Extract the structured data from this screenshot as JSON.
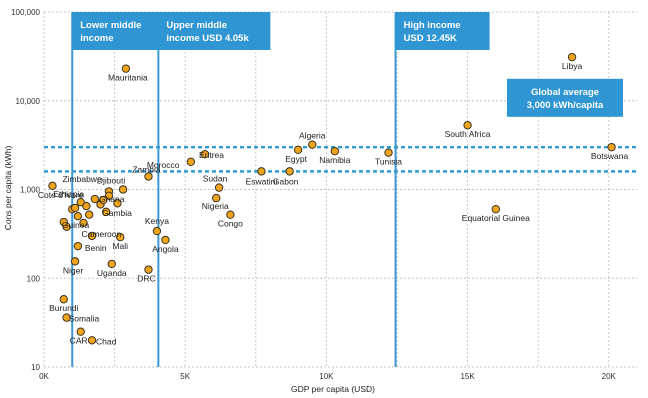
{
  "chart_data": {
    "type": "scatter",
    "title": "",
    "xlabel": "GDP per capita (USD)",
    "ylabel": "Cons per capita (kWh)",
    "xlim": [
      0,
      21000
    ],
    "ylim": [
      10,
      100000
    ],
    "y_scale": "log",
    "grid": true,
    "x_ticks": [
      {
        "value": 0,
        "label": "0K"
      },
      {
        "value": 5000,
        "label": "5K"
      },
      {
        "value": 10000,
        "label": "10K"
      },
      {
        "value": 15000,
        "label": "15K"
      },
      {
        "value": 20000,
        "label": "20K"
      }
    ],
    "y_ticks": [
      {
        "value": 10,
        "label": "10"
      },
      {
        "value": 100,
        "label": "100"
      },
      {
        "value": 1000,
        "label": "1,000"
      },
      {
        "value": 10000,
        "label": "10,000"
      },
      {
        "value": 100000,
        "label": "100,000"
      }
    ],
    "income_thresholds": [
      {
        "x": 1000,
        "text": [
          "Lower middle",
          "income"
        ]
      },
      {
        "x": 4050,
        "text": [
          "Upper middle",
          "income USD 4.05k"
        ]
      },
      {
        "x": 12450,
        "text": [
          "High income",
          "USD 12.45K"
        ]
      }
    ],
    "global_average": {
      "y_band": [
        1600,
        3000
      ],
      "text": [
        "Global average",
        "3,000 kWh/capita"
      ]
    },
    "points": [
      {
        "name": "Libya",
        "x": 18700,
        "y": 31000
      },
      {
        "name": "Mauritania",
        "x": 2900,
        "y": 23000
      },
      {
        "name": "South Africa",
        "x": 15000,
        "y": 5300
      },
      {
        "name": "Algeria",
        "x": 9500,
        "y": 3200
      },
      {
        "name": "Botswana",
        "x": 20100,
        "y": 3000
      },
      {
        "name": "Egypt",
        "x": 9000,
        "y": 2800
      },
      {
        "name": "Namibia",
        "x": 10300,
        "y": 2700
      },
      {
        "name": "Tunisia",
        "x": 12200,
        "y": 2600
      },
      {
        "name": "Eritrea",
        "x": 5700,
        "y": 2500
      },
      {
        "name": "Morocco",
        "x": 5200,
        "y": 2050
      },
      {
        "name": "Eswatini",
        "x": 7700,
        "y": 1600
      },
      {
        "name": "Gabon",
        "x": 8700,
        "y": 1600
      },
      {
        "name": "Zambia",
        "x": 3700,
        "y": 1400
      },
      {
        "name": "Sudan",
        "x": 6200,
        "y": 1050
      },
      {
        "name": "Zimbabwe",
        "x": 300,
        "y": 1100
      },
      {
        "name": "Djibouti",
        "x": 2800,
        "y": 1000
      },
      {
        "name": "Ethiopia",
        "x": 1300,
        "y": 720
      },
      {
        "name": "Ghana",
        "x": 2300,
        "y": 850
      },
      {
        "name": "Nigeria",
        "x": 6100,
        "y": 800
      },
      {
        "name": "Cote d'Ivore",
        "x": 2600,
        "y": 700
      },
      {
        "name": "Gambia",
        "x": 2200,
        "y": 560
      },
      {
        "name": "Equatorial Guinea",
        "x": 16000,
        "y": 600
      },
      {
        "name": "Congo",
        "x": 6600,
        "y": 520
      },
      {
        "name": "Guinea",
        "x": 700,
        "y": 430
      },
      {
        "name": "Cameroon",
        "x": 1400,
        "y": 420
      },
      {
        "name": "Kenya",
        "x": 4000,
        "y": 340
      },
      {
        "name": "Benin",
        "x": 1200,
        "y": 230
      },
      {
        "name": "Mali",
        "x": 2700,
        "y": 290
      },
      {
        "name": "Angola",
        "x": 4300,
        "y": 270
      },
      {
        "name": "Niger",
        "x": 1100,
        "y": 155
      },
      {
        "name": "Uganda",
        "x": 2400,
        "y": 145
      },
      {
        "name": "DRC",
        "x": 3700,
        "y": 125
      },
      {
        "name": "Burundi",
        "x": 700,
        "y": 58
      },
      {
        "name": "Somalia",
        "x": 800,
        "y": 36
      },
      {
        "name": "CAR",
        "x": 1300,
        "y": 25
      },
      {
        "name": "Chad",
        "x": 1700,
        "y": 20
      }
    ],
    "unlabeled_points": [
      {
        "x": 800,
        "y": 380
      },
      {
        "x": 1000,
        "y": 600
      },
      {
        "x": 1200,
        "y": 500
      },
      {
        "x": 1500,
        "y": 650
      },
      {
        "x": 1600,
        "y": 520
      },
      {
        "x": 1800,
        "y": 780
      },
      {
        "x": 2000,
        "y": 680
      },
      {
        "x": 2100,
        "y": 760
      },
      {
        "x": 2300,
        "y": 950
      },
      {
        "x": 1700,
        "y": 300
      },
      {
        "x": 1100,
        "y": 620
      }
    ]
  }
}
